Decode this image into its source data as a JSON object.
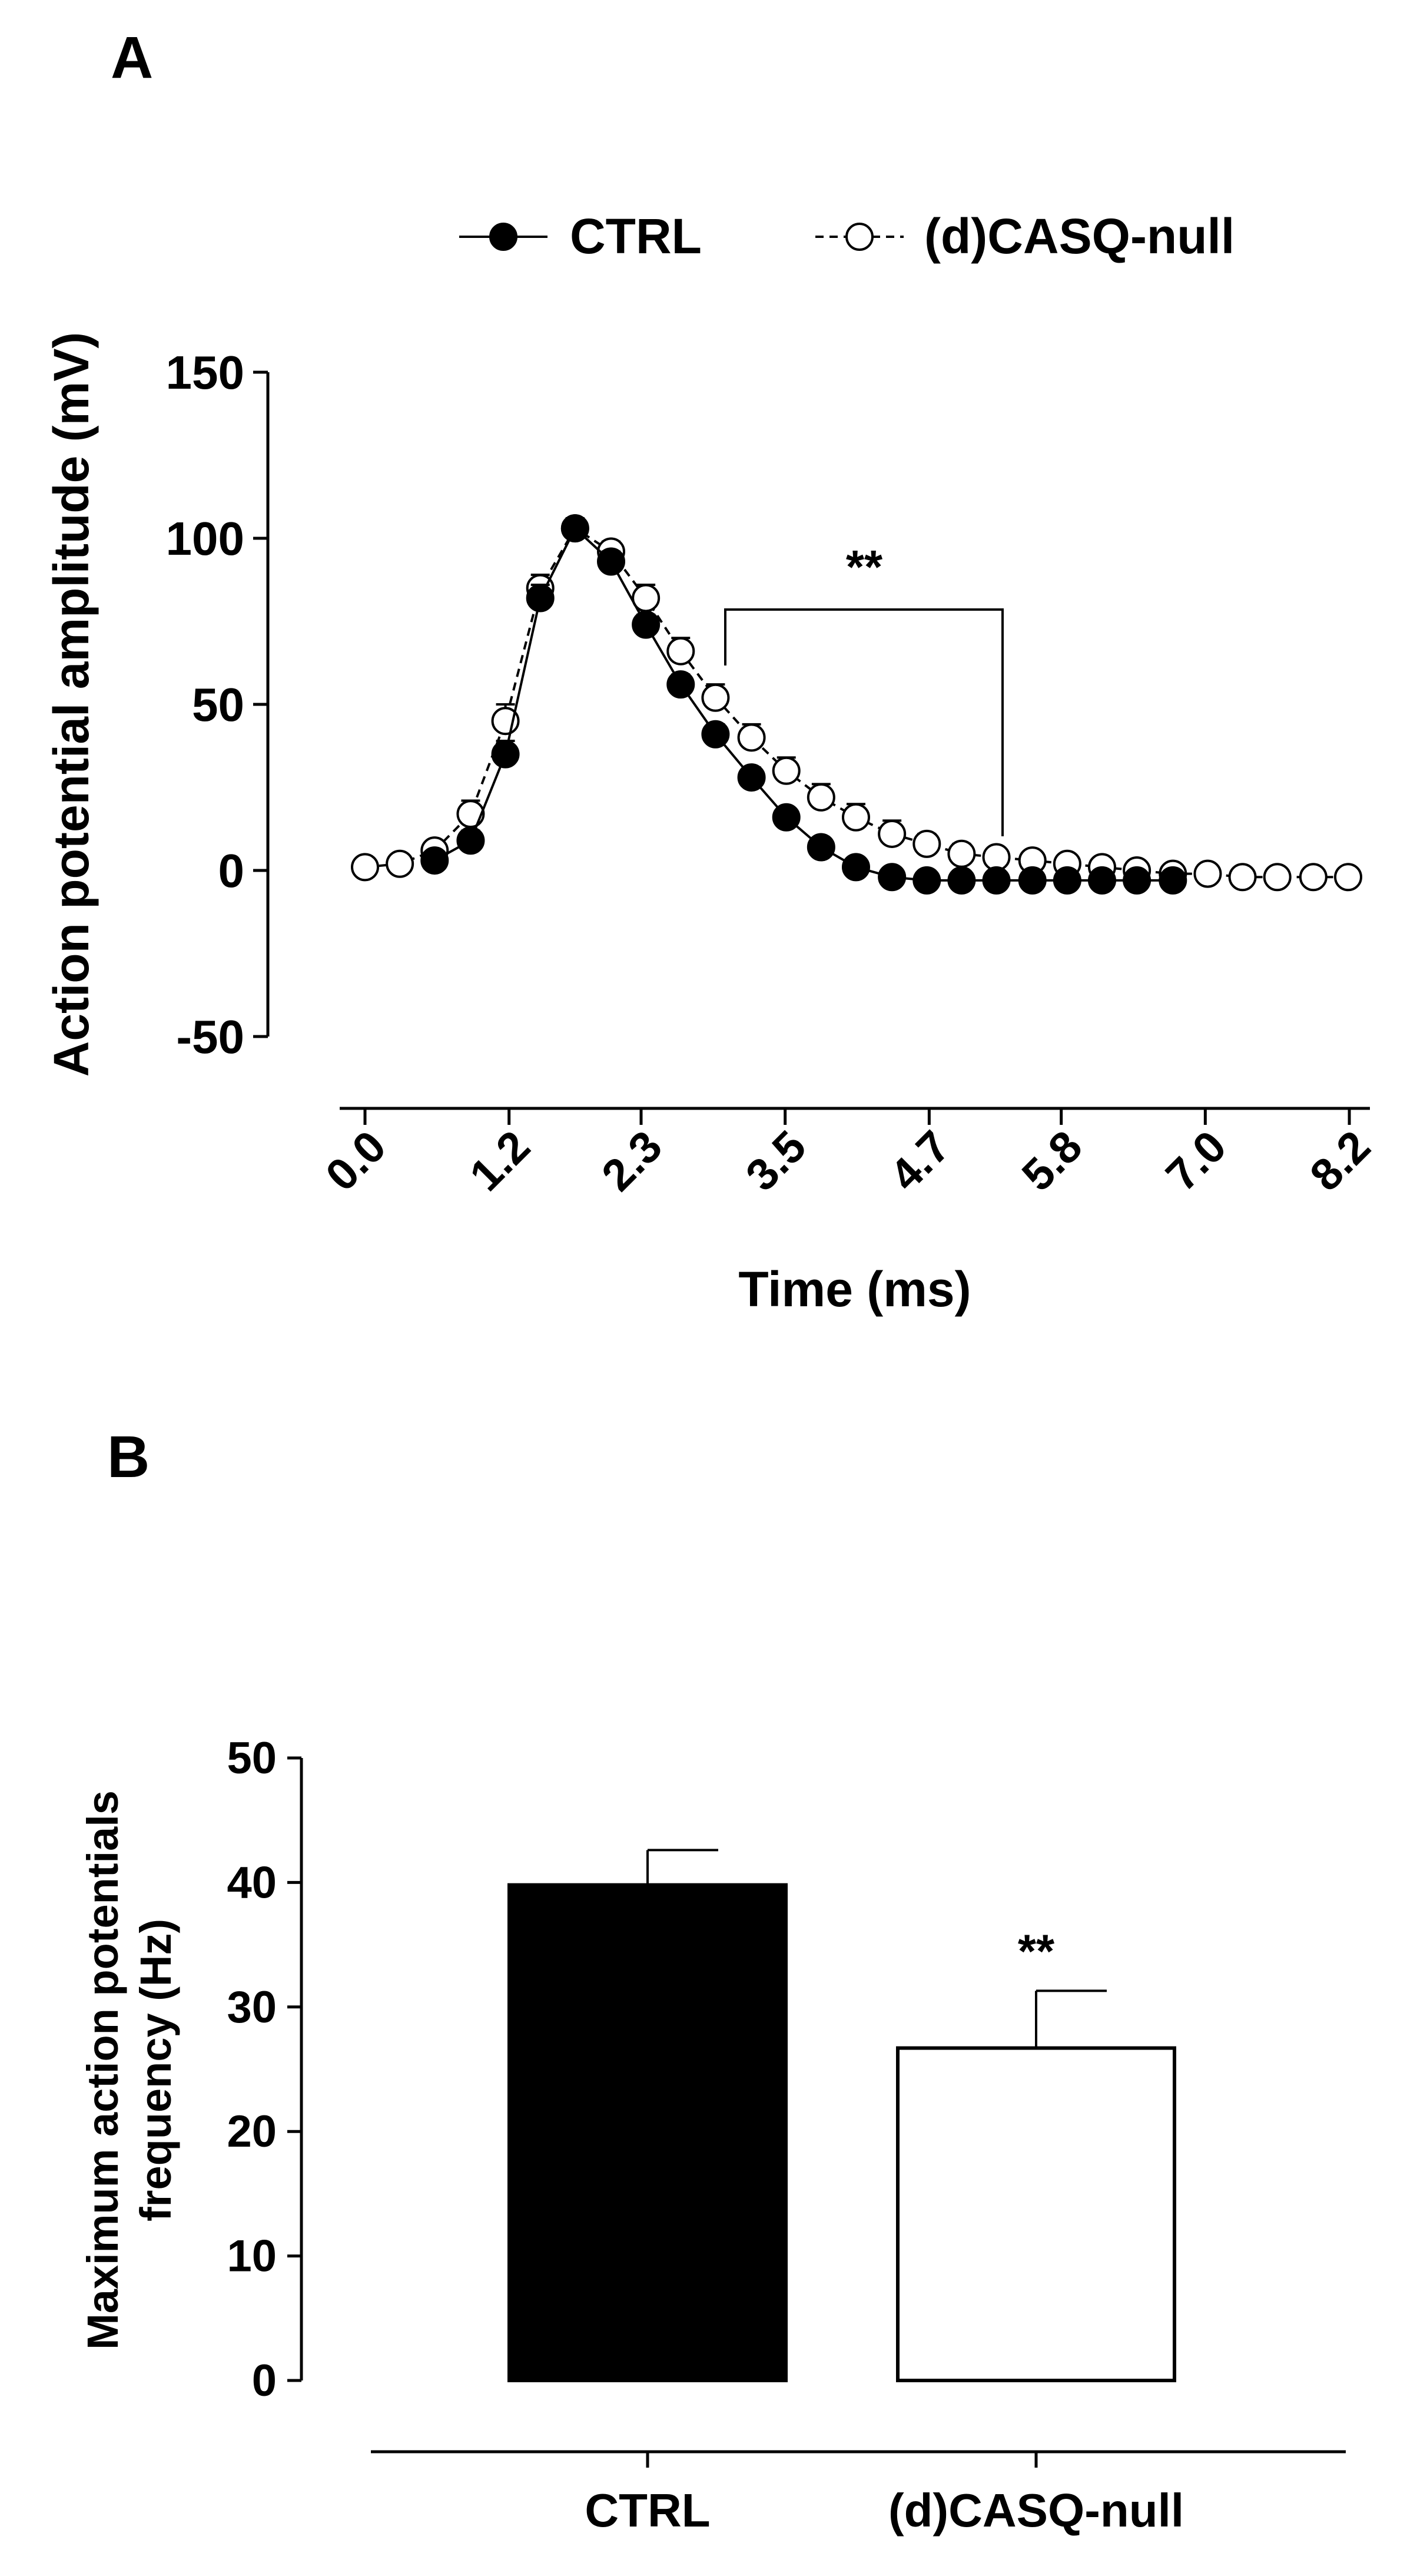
{
  "chart_data": [
    {
      "panel_label": "A",
      "type": "line",
      "xlabel": "Time (ms)",
      "ylabel": "Action potential amplitude (mV)",
      "ylim": [
        -50,
        150
      ],
      "yticks": [
        "150",
        "100",
        "50",
        "0",
        "-50"
      ],
      "xticks": [
        "0.0",
        "1.2",
        "2.3",
        "3.5",
        "4.7",
        "5.8",
        "7.0",
        "8.2"
      ],
      "grid": false,
      "legend_position": "top",
      "significance": "**",
      "x": [
        0.0,
        0.29,
        0.58,
        0.88,
        1.17,
        1.46,
        1.75,
        2.05,
        2.34,
        2.63,
        2.92,
        3.22,
        3.51,
        3.8,
        4.09,
        4.39,
        4.68,
        4.97,
        5.26,
        5.56,
        5.85,
        6.14,
        6.43,
        6.73,
        7.02,
        7.31,
        7.6,
        7.9,
        8.19
      ],
      "series": [
        {
          "name": "CTRL",
          "style": "filled",
          "color": "#000000",
          "values": [
            null,
            null,
            3,
            9,
            35,
            82,
            103,
            93,
            74,
            56,
            41,
            28,
            16,
            7,
            1,
            -2,
            -3,
            -3,
            -3,
            -3,
            -3,
            -3,
            -3,
            -3,
            null,
            null,
            null,
            null,
            null
          ],
          "errors": [
            null,
            null,
            2,
            3,
            4,
            4,
            3,
            3,
            3,
            3,
            3,
            3,
            2,
            2,
            2,
            2,
            1,
            1,
            1,
            1,
            1,
            1,
            1,
            1,
            null,
            null,
            null,
            null,
            null
          ]
        },
        {
          "name": "(d)CASQ-null",
          "style": "open",
          "color": "#ffffff",
          "values": [
            1,
            2,
            6,
            17,
            45,
            85,
            103,
            96,
            82,
            66,
            52,
            40,
            30,
            22,
            16,
            11,
            8,
            5,
            4,
            3,
            2,
            1,
            0,
            -1,
            -1,
            -2,
            -2,
            -2,
            -2
          ],
          "errors": [
            null,
            null,
            2,
            4,
            5,
            4,
            3,
            3,
            4,
            4,
            4,
            4,
            4,
            4,
            4,
            4,
            3,
            3,
            2,
            2,
            2,
            2,
            1,
            1,
            1,
            1,
            1,
            1,
            1
          ]
        }
      ]
    },
    {
      "panel_label": "B",
      "type": "bar",
      "ylabel": "Maximum action potentials frequency (Hz)",
      "ylim": [
        0,
        50
      ],
      "yticks": [
        "50",
        "40",
        "30",
        "20",
        "10",
        "0"
      ],
      "categories": [
        "CTRL",
        "(d)CASQ-null"
      ],
      "values": [
        39.8,
        26.7
      ],
      "errors": [
        2.8,
        4.6
      ],
      "colors": [
        "#000000",
        "#ffffff"
      ],
      "annotations": [
        "",
        "**"
      ],
      "grid": false
    }
  ]
}
